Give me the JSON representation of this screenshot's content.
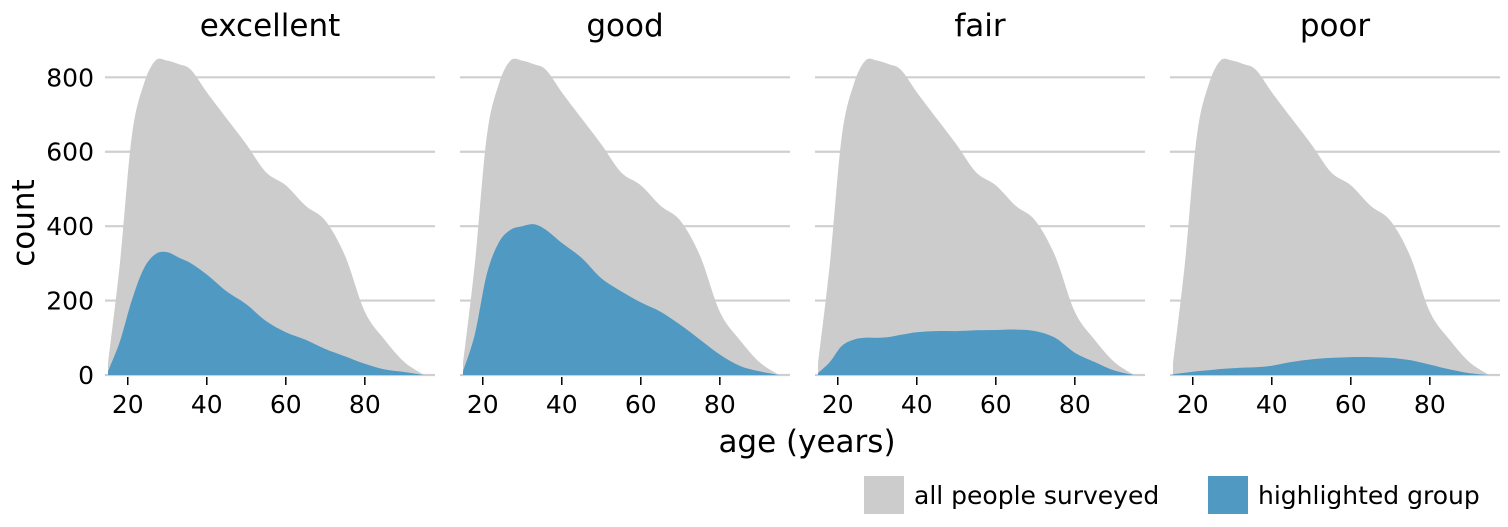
{
  "chart_data": {
    "type": "area",
    "subtype": "faceted-density-overlay",
    "xlabel": "age (years)",
    "ylabel": "count",
    "xlim": [
      15,
      97
    ],
    "ylim": [
      0,
      860
    ],
    "x_ticks": [
      20,
      40,
      60,
      80
    ],
    "y_ticks": [
      0,
      200,
      400,
      600,
      800
    ],
    "grid": "horizontal",
    "legend": {
      "placement": "bottom-right",
      "items": [
        {
          "label": "all people surveyed",
          "color": "#cccccc"
        },
        {
          "label": "highlighted group",
          "color": "#4f99c2"
        }
      ]
    },
    "colors": {
      "all": "#cccccc",
      "highlight": "#4f99c2"
    },
    "x": [
      15,
      18,
      21,
      24,
      27,
      30,
      33,
      36,
      40,
      45,
      50,
      55,
      60,
      65,
      70,
      75,
      80,
      85,
      90,
      95
    ],
    "all_people": [
      30,
      300,
      640,
      780,
      845,
      845,
      835,
      820,
      760,
      690,
      620,
      545,
      510,
      455,
      415,
      320,
      170,
      95,
      35,
      0
    ],
    "facets": [
      {
        "title": "excellent",
        "values": [
          10,
          90,
          200,
          285,
          325,
          330,
          315,
          300,
          270,
          225,
          190,
          145,
          115,
          95,
          70,
          50,
          30,
          15,
          8,
          0
        ]
      },
      {
        "title": "good",
        "values": [
          10,
          110,
          270,
          355,
          390,
          400,
          405,
          390,
          355,
          315,
          260,
          225,
          195,
          170,
          135,
          95,
          55,
          25,
          10,
          0
        ]
      },
      {
        "title": "fair",
        "values": [
          5,
          35,
          78,
          95,
          100,
          100,
          102,
          108,
          115,
          118,
          118,
          120,
          121,
          122,
          118,
          100,
          60,
          35,
          12,
          0
        ]
      },
      {
        "title": "poor",
        "values": [
          2,
          6,
          10,
          13,
          16,
          18,
          20,
          21,
          25,
          35,
          42,
          46,
          48,
          48,
          46,
          40,
          28,
          15,
          5,
          0
        ]
      }
    ]
  }
}
